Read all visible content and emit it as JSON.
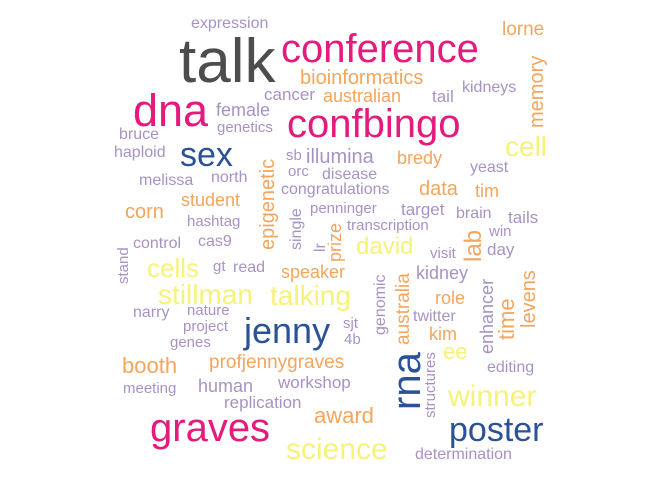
{
  "colors": {
    "grey": "#4d4d4d",
    "magenta": "#e41a7d",
    "navy": "#2b5196",
    "orange": "#f5a55c",
    "yellow": "#f6f27a",
    "lavender": "#a892c4"
  },
  "words": {
    "talk": "talk",
    "conference": "conference",
    "dna": "dna",
    "confbingo": "confbingo",
    "graves": "graves",
    "jenny": "jenny",
    "sex": "sex",
    "rna": "rna",
    "poster": "poster",
    "stillman": "stillman",
    "talking": "talking",
    "science": "science",
    "winner": "winner",
    "cell": "cell",
    "cells": "cells",
    "david": "david",
    "bioinformatics": "bioinformatics",
    "australian": "australian",
    "memory": "memory",
    "lorne": "lorne",
    "expression": "expression",
    "kidneys": "kidneys",
    "cancer": "cancer",
    "tail": "tail",
    "female": "female",
    "genetics": "genetics",
    "bruce": "bruce",
    "haploid": "haploid",
    "illumina": "illumina",
    "sb": "sb",
    "bredy": "bredy",
    "yeast": "yeast",
    "melissa": "melissa",
    "north": "north",
    "orc": "orc",
    "disease": "disease",
    "congratulations": "congratulations",
    "data": "data",
    "tim": "tim",
    "epigenetic": "epigenetic",
    "student": "student",
    "corn": "corn",
    "hashtag": "hashtag",
    "single": "single",
    "penninger": "penninger",
    "target": "target",
    "brain": "brain",
    "tails": "tails",
    "transcription": "transcription",
    "win": "win",
    "control": "control",
    "cas9": "cas9",
    "lr": "lr",
    "prize": "prize",
    "visit": "visit",
    "lab": "lab",
    "day": "day",
    "stand": "stand",
    "gt": "gt",
    "read": "read",
    "speaker": "speaker",
    "genomic": "genomic",
    "australia": "australia",
    "kidney": "kidney",
    "role": "role",
    "enhancer": "enhancer",
    "levens": "levens",
    "time": "time",
    "narry": "narry",
    "nature": "nature",
    "project": "project",
    "sjt": "sjt",
    "twitter": "twitter",
    "genes": "genes",
    "kim": "kim",
    "4b": "4b",
    "ee": "ee",
    "booth": "booth",
    "profjennygraves": "profjennygraves",
    "structures": "structures",
    "editing": "editing",
    "meeting": "meeting",
    "human": "human",
    "workshop": "workshop",
    "replication": "replication",
    "award": "award",
    "determination": "determination"
  }
}
